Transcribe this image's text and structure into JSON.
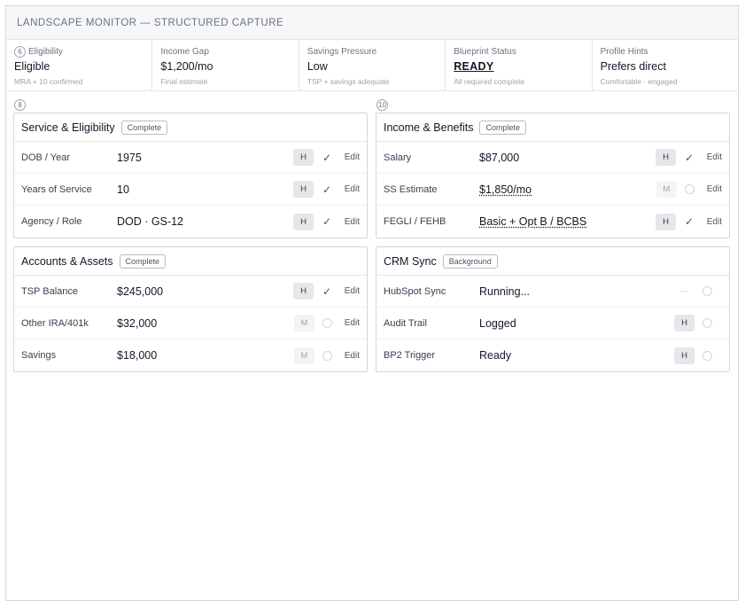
{
  "header": {
    "title": "LANDSCAPE MONITOR — STRUCTURED CAPTURE"
  },
  "summary": [
    {
      "badge": "6",
      "label": "Eligibility",
      "value": "Eligible",
      "note": "MRA + 10 confirmed"
    },
    {
      "badge": "",
      "label": "Income Gap",
      "value": "$1,200/mo",
      "note": "Final estimate"
    },
    {
      "badge": "",
      "label": "Savings Pressure",
      "value": "Low",
      "note": "TSP + savings adequate"
    },
    {
      "badge": "",
      "label": "Blueprint Status",
      "value": "READY",
      "note": "All required complete"
    },
    {
      "badge": "",
      "label": "Profile Hints",
      "value": "Prefers direct",
      "note": "Comfortable · engaged"
    }
  ],
  "column_badges": {
    "left": "8",
    "right": "10"
  },
  "panels": {
    "service": {
      "title": "Service & Eligibility",
      "pill": "Complete",
      "rows": [
        {
          "label": "DOB / Year",
          "value": "1975",
          "conf": "H",
          "edit": "Edit"
        },
        {
          "label": "Years of Service",
          "value": "10",
          "conf": "H",
          "edit": "Edit"
        },
        {
          "label": "Agency / Role",
          "value": "DOD · GS-12",
          "conf": "H",
          "edit": "Edit"
        }
      ]
    },
    "income": {
      "title": "Income & Benefits",
      "pill": "Complete",
      "rows": [
        {
          "label": "Salary",
          "value": "$87,000",
          "conf": "H",
          "edit": "Edit"
        },
        {
          "label": "SS Estimate",
          "value": "$1,850/mo",
          "conf": "M",
          "edit": "Edit"
        },
        {
          "label": "FEGLI / FEHB",
          "value": "Basic + Opt B / BCBS",
          "conf": "H",
          "edit": "Edit"
        }
      ]
    },
    "accounts": {
      "title": "Accounts & Assets",
      "pill": "Complete",
      "rows": [
        {
          "label": "TSP Balance",
          "value": "$245,000",
          "conf": "H",
          "edit": "Edit"
        },
        {
          "label": "Other IRA/401k",
          "value": "$32,000",
          "conf": "M",
          "edit": "Edit"
        },
        {
          "label": "Savings",
          "value": "$18,000",
          "conf": "M",
          "edit": "Edit"
        }
      ]
    },
    "crm": {
      "title": "CRM Sync",
      "pill": "Background",
      "rows": [
        {
          "label": "HubSpot Sync",
          "value": "Running...",
          "conf": "—"
        },
        {
          "label": "Audit Trail",
          "value": "Logged",
          "conf": "H"
        },
        {
          "label": "BP2 Trigger",
          "value": "Ready",
          "conf": "H"
        }
      ]
    }
  }
}
